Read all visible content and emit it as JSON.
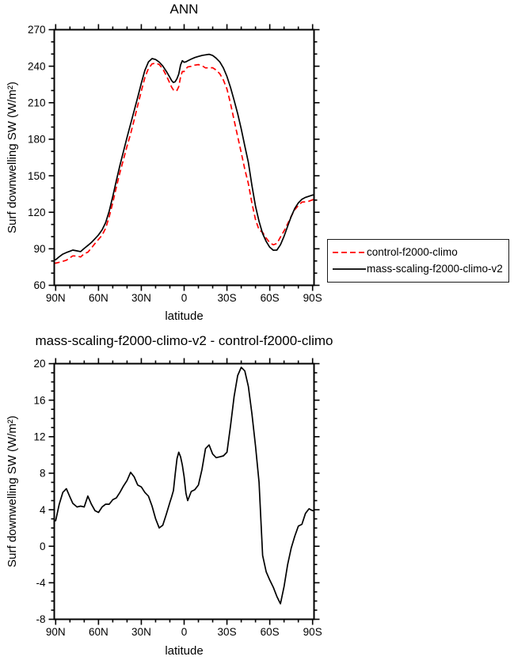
{
  "figure": {
    "background": "#ffffff",
    "text_color": "#000000",
    "axis_color": "#000000"
  },
  "chart_data": [
    {
      "id": "ann",
      "type": "line",
      "title": "ANN",
      "xlabel": "latitude",
      "ylabel": "Surf downwelling SW (W/m²)",
      "grid": false,
      "legend_position": "right-outside",
      "xlim": [
        91,
        -91
      ],
      "ylim": [
        60,
        270
      ],
      "x_ticks": {
        "values": [
          90,
          60,
          30,
          0,
          -30,
          -60,
          -90
        ],
        "labels": [
          "90N",
          "60N",
          "30N",
          "0",
          "30S",
          "60S",
          "90S"
        ],
        "minor_step": 10
      },
      "y_ticks": {
        "values": [
          60,
          90,
          120,
          150,
          180,
          210,
          240,
          270
        ],
        "labels": [
          "60",
          "90",
          "120",
          "150",
          "180",
          "210",
          "240",
          "270"
        ],
        "minor_step": 10
      },
      "lat": [
        90,
        87.5,
        85,
        82.5,
        80,
        78,
        75,
        72.5,
        70,
        67.5,
        65,
        62.5,
        60,
        57.5,
        55,
        52.5,
        50,
        47.5,
        45,
        42.5,
        40,
        37.5,
        35,
        32.5,
        30,
        27.5,
        25,
        22.5,
        20,
        17.5,
        15,
        12.5,
        10,
        8.75,
        7.5,
        6.25,
        5,
        3.75,
        2.5,
        1.25,
        0,
        -1.25,
        -2.5,
        -5,
        -7.5,
        -10,
        -12.5,
        -15,
        -17.5,
        -20,
        -22.5,
        -25,
        -27.5,
        -30,
        -32.5,
        -35,
        -37.5,
        -40,
        -42.5,
        -45,
        -47.5,
        -50,
        -52.5,
        -55,
        -57.5,
        -60,
        -62.5,
        -65,
        -67.5,
        -70,
        -72.5,
        -75,
        -77.5,
        -80,
        -82.5,
        -85,
        -87.5,
        -90
      ],
      "series": [
        {
          "name": "control-f2000-climo",
          "color": "#ff0000",
          "line_style": "dashed",
          "values": [
            78.2,
            78.9,
            79.7,
            80.6,
            82.6,
            84.2,
            84.0,
            83.3,
            86.0,
            87.2,
            90.6,
            94.3,
            97.7,
            101.2,
            106.9,
            116.4,
            127.9,
            140.7,
            152.6,
            163.4,
            174.3,
            184.4,
            195.9,
            207.8,
            219.5,
            230.6,
            238.0,
            241.9,
            242.5,
            241.4,
            237.9,
            232.3,
            226.0,
            222.8,
            220.5,
            219.4,
            220.2,
            223.2,
            231.2,
            235.6,
            235.6,
            237.8,
            239.4,
            239.9,
            240.9,
            241.3,
            240.4,
            238.6,
            238.7,
            238.7,
            236.8,
            233.7,
            228.6,
            221.2,
            209.3,
            195.6,
            182.3,
            168.9,
            155.3,
            143.5,
            127.5,
            114.0,
            105.5,
            103.5,
            98.8,
            95.0,
            93.3,
            94.4,
            99.6,
            104.7,
            110.5,
            116.7,
            122.1,
            125.5,
            128.3,
            128.6,
            129.1,
            130.3
          ]
        },
        {
          "name": "mass-scaling-f2000-climo-v2",
          "color": "#000000",
          "line_style": "solid",
          "values": [
            81,
            83.5,
            85.6,
            86.9,
            88,
            88.9,
            88.3,
            87.7,
            90.3,
            92.7,
            95.2,
            98.2,
            101.4,
            105.5,
            111.5,
            121,
            133,
            146,
            158.5,
            170,
            181.5,
            192.5,
            203.5,
            214.5,
            226,
            236.5,
            243.5,
            246.3,
            245.5,
            243.4,
            240.2,
            235.8,
            230.8,
            228.2,
            226.6,
            227.3,
            229.8,
            233.5,
            241,
            244.5,
            243.2,
            243.6,
            244.4,
            245.9,
            247.1,
            248,
            248.8,
            249.3,
            249.8,
            248.8,
            246.5,
            243.5,
            238.5,
            231.5,
            222.5,
            212,
            201,
            188.5,
            174.5,
            161,
            142,
            125,
            112.5,
            102.5,
            96,
            91.3,
            88.8,
            88.9,
            93.3,
            100.3,
            108.5,
            116.5,
            123.2,
            127.7,
            130.7,
            132.2,
            133.2,
            134.2
          ]
        }
      ]
    },
    {
      "id": "difference",
      "type": "line",
      "title": "mass-scaling-f2000-climo-v2 - control-f2000-climo",
      "xlabel": "latitude",
      "ylabel": "Surf downwelling SW (W/m²)",
      "grid": false,
      "legend_position": "none",
      "xlim": [
        91,
        -91
      ],
      "ylim": [
        -8,
        20
      ],
      "x_ticks": {
        "values": [
          90,
          60,
          30,
          0,
          -30,
          -60,
          -90
        ],
        "labels": [
          "90N",
          "60N",
          "30N",
          "0",
          "30S",
          "60S",
          "90S"
        ],
        "minor_step": 10
      },
      "y_ticks": {
        "values": [
          -8,
          -4,
          0,
          4,
          8,
          12,
          16,
          20
        ],
        "labels": [
          "-8",
          "-4",
          "0",
          "4",
          "8",
          "12",
          "16",
          "20"
        ],
        "minor_step": 1
      },
      "lat": [
        90,
        87.5,
        85,
        82.5,
        80,
        78,
        75,
        72.5,
        70,
        67.5,
        65,
        62.5,
        60,
        57.5,
        55,
        52.5,
        50,
        47.5,
        45,
        42.5,
        40,
        37.5,
        35,
        32.5,
        30,
        27.5,
        25,
        22.5,
        20,
        17.5,
        15,
        12.5,
        10,
        8.75,
        7.5,
        6.25,
        5,
        3.75,
        2.5,
        1.25,
        0,
        -1.25,
        -2.5,
        -5,
        -7.5,
        -10,
        -12.5,
        -15,
        -17.5,
        -20,
        -22.5,
        -25,
        -27.5,
        -30,
        -32.5,
        -35,
        -37.5,
        -40,
        -42.5,
        -45,
        -47.5,
        -50,
        -52.5,
        -55,
        -57.5,
        -60,
        -62.5,
        -65,
        -67.5,
        -70,
        -72.5,
        -75,
        -77.5,
        -80,
        -82.5,
        -85,
        -87.5,
        -90
      ],
      "series": [
        {
          "name": "mass-scaling-f2000-climo-v2 - control-f2000-climo",
          "color": "#000000",
          "line_style": "solid",
          "values": [
            2.8,
            4.6,
            5.9,
            6.3,
            5.4,
            4.7,
            4.3,
            4.4,
            4.3,
            5.5,
            4.6,
            3.9,
            3.7,
            4.3,
            4.6,
            4.6,
            5.1,
            5.3,
            5.9,
            6.6,
            7.2,
            8.1,
            7.6,
            6.7,
            6.5,
            5.9,
            5.5,
            4.4,
            3,
            2,
            2.3,
            3.5,
            4.8,
            5.4,
            6.1,
            7.9,
            9.6,
            10.3,
            9.8,
            8.9,
            7.6,
            5.8,
            5,
            6,
            6.2,
            6.7,
            8.4,
            10.7,
            11.1,
            10.1,
            9.7,
            9.8,
            9.9,
            10.3,
            13.2,
            16.4,
            18.7,
            19.6,
            19.2,
            17.5,
            14.5,
            11,
            7,
            -1,
            -2.8,
            -3.7,
            -4.5,
            -5.5,
            -6.3,
            -4.4,
            -2,
            -0.2,
            1.1,
            2.2,
            2.4,
            3.6,
            4.1,
            3.9
          ]
        }
      ]
    }
  ]
}
